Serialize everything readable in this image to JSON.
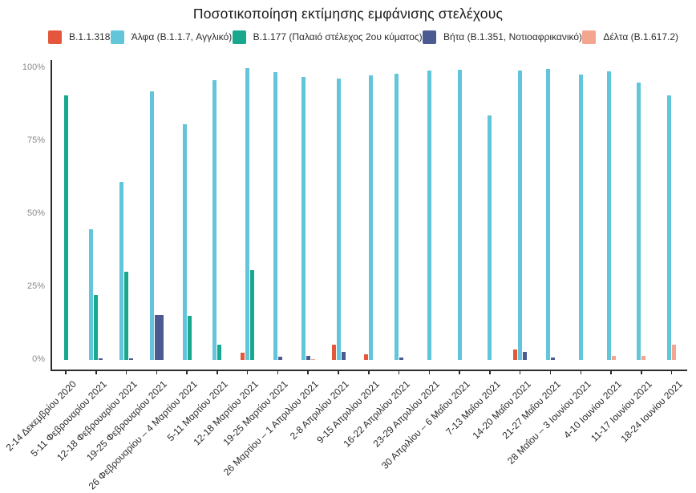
{
  "title": "Ποσοτικοποίηση εκτίμησης εμφάνισης στελέχους",
  "colors": {
    "b11318": "#e4573d",
    "alpha": "#63c5da",
    "b1177": "#17a88e",
    "beta": "#4b5b92",
    "delta": "#f3a590",
    "axis": "#2b2b2b",
    "y_tick_text": "#8a8a8a"
  },
  "legend": [
    {
      "label": "B.1.1.318",
      "color": "#e4573d"
    },
    {
      "label": "Άλφα (B.1.1.7, Αγγλικό)",
      "color": "#63c5da"
    },
    {
      "label": "B.1.177 (Παλαιό στέλεχος 2ου κύματος)",
      "color": "#17a88e"
    },
    {
      "label": "Βήτα (B.1.351, Νοτιοαφρικανικό)",
      "color": "#4b5b92"
    },
    {
      "label": "Δέλτα (B.1.617.2)",
      "color": "#f3a590"
    }
  ],
  "chart_data": {
    "type": "bar",
    "title": "Ποσοτικοποίηση εκτίμησης εμφάνισης στελέχους",
    "xlabel": "",
    "ylabel": "",
    "ylim": [
      0,
      100
    ],
    "yticks": [
      {
        "value": 0,
        "label": "0%"
      },
      {
        "value": 25,
        "label": "25%"
      },
      {
        "value": 50,
        "label": "50%"
      },
      {
        "value": 75,
        "label": "75%"
      },
      {
        "value": 100,
        "label": "100%"
      }
    ],
    "grid": false,
    "legend_position": "top",
    "unit": "percent",
    "categories": [
      "2-14 Δεκεμβρίου 2020",
      "5-11 Φεβρουαρίου 2021",
      "12-18 Φεβρουαρίου 2021",
      "19-25 Φεβρουαρίου 2021",
      "26 Φεβρουαρίου – 4 Μαρτίου 2021",
      "5-11 Μαρτίου 2021",
      "12-18 Μαρτίου 2021",
      "19-25 Μαρτίου 2021",
      "26 Μαρτίου – 1 Απριλίου 2021",
      "2-8 Απριλίου 2021",
      "9-15 Απριλίου 2021",
      "16-22 Απριλίου 2021",
      "23-29 Απριλίου 2021",
      "30 Απριλίου – 6 Μαΐου 2021",
      "7-13 Μαΐου 2021",
      "14-20 Μαΐου 2021",
      "21-27 Μαΐου 2021",
      "28 Μαΐου – 3 Ιουνίου 2021",
      "4-10 Ιουνίου 2021",
      "11-17 Ιουνίου 2021",
      "18-24 Ιουνίου 2021"
    ],
    "series": [
      {
        "name": "B.1.1.318",
        "color": "#e4573d",
        "values": [
          null,
          null,
          null,
          null,
          null,
          null,
          2.5,
          null,
          null,
          5.3,
          2,
          null,
          null,
          null,
          null,
          3.5,
          null,
          null,
          null,
          null,
          null
        ]
      },
      {
        "name": "Άλφα (B.1.1.7, Αγγλικό)",
        "color": "#63c5da",
        "values": [
          null,
          44.8,
          61,
          92,
          80.8,
          95.9,
          100,
          98.6,
          97,
          96.4,
          97.5,
          98.1,
          99.2,
          99.5,
          83.8,
          99.2,
          99.7,
          97.8,
          98.9,
          95.1,
          90.7
        ]
      },
      {
        "name": "B.1.177 (Παλαιό στέλεχος 2ου κύματος)",
        "color": "#17a88e",
        "values": [
          90.7,
          22.3,
          30.2,
          null,
          15.1,
          5.2,
          30.8,
          null,
          null,
          null,
          null,
          null,
          null,
          null,
          null,
          null,
          null,
          null,
          null,
          null,
          null
        ]
      },
      {
        "name": "Βήτα (B.1.351, Νοτιοαφρικανικό)",
        "color": "#4b5b92",
        "values": [
          null,
          0.6,
          0.6,
          15.4,
          null,
          null,
          null,
          1.2,
          1.4,
          2.7,
          null,
          0.7,
          null,
          null,
          null,
          2.8,
          0.9,
          null,
          null,
          null,
          null
        ]
      },
      {
        "name": "Δέλτα (B.1.617.2)",
        "color": "#f3a590",
        "values": [
          null,
          null,
          null,
          null,
          null,
          null,
          null,
          null,
          0.4,
          null,
          null,
          null,
          null,
          null,
          null,
          null,
          null,
          null,
          1.5,
          1.3,
          5.3
        ]
      }
    ],
    "bar_width_overrides": [
      {
        "category_index": 3,
        "series": "Βήτα (B.1.351, Νοτιοαφρικανικό)",
        "factor": 2
      }
    ]
  }
}
